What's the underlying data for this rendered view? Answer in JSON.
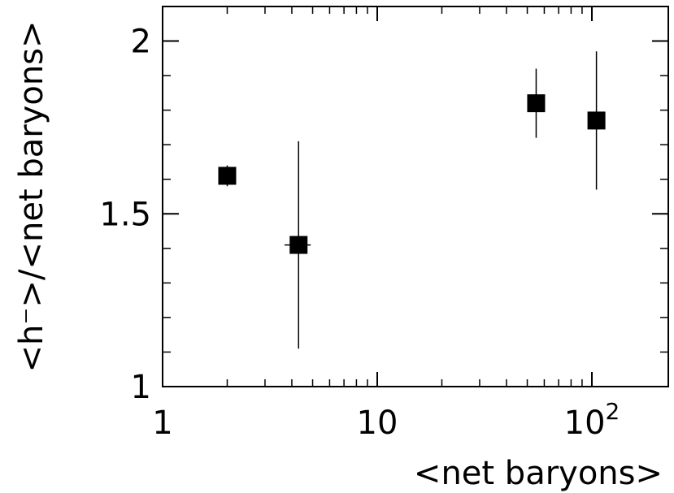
{
  "chart_data": {
    "type": "scatter",
    "xlabel": "<net baryons>",
    "ylabel": "<h⁻>/<net baryons>",
    "x_scale": "log",
    "xlim": [
      1,
      180
    ],
    "ylim": [
      1,
      2.1
    ],
    "x_ticks": [
      {
        "value": 1,
        "label": "1"
      },
      {
        "value": 10,
        "label": "10"
      },
      {
        "value": 100,
        "label": "10",
        "exponent": "2"
      }
    ],
    "y_ticks": [
      {
        "value": 1,
        "label": "1"
      },
      {
        "value": 1.5,
        "label": "1.5"
      },
      {
        "value": 2,
        "label": "2"
      }
    ],
    "marker": "filled-square",
    "grid": false,
    "points": [
      {
        "x": 2.0,
        "y": 1.61,
        "yerr": 0.03,
        "xerr": 0.0
      },
      {
        "x": 4.3,
        "y": 1.41,
        "yerr": 0.3,
        "xerr": 0.6
      },
      {
        "x": 55,
        "y": 1.82,
        "yerr": 0.1,
        "xerr": 0
      },
      {
        "x": 105,
        "y": 1.77,
        "yerr": 0.2,
        "xerr": 8
      }
    ]
  }
}
